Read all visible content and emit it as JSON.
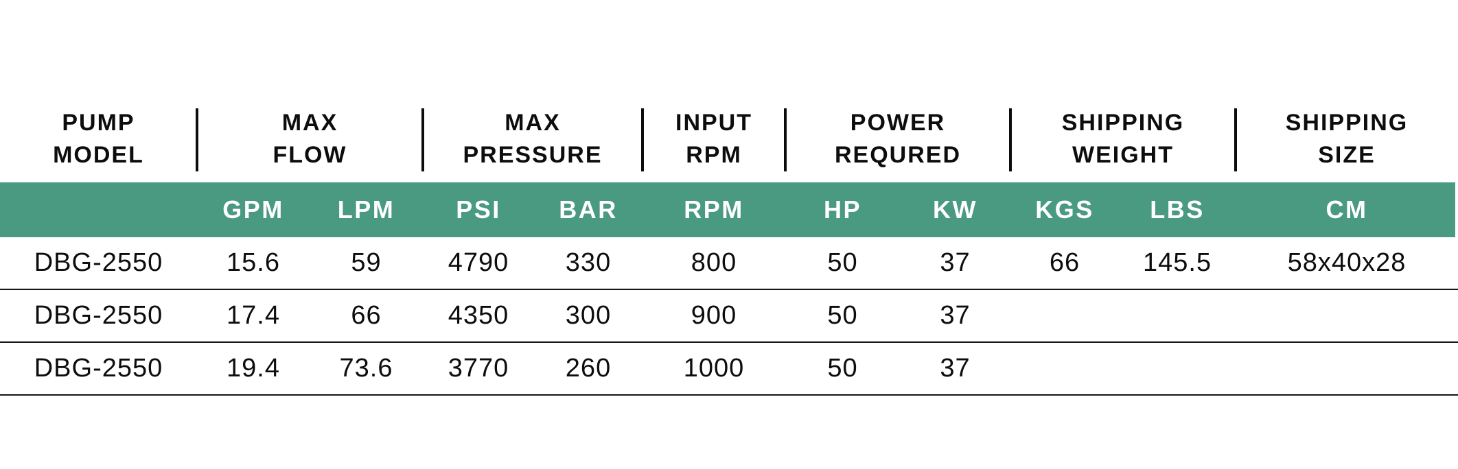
{
  "table": {
    "accent_color": "#4A9A82",
    "groups": [
      {
        "line1": "PUMP",
        "line2": "MODEL"
      },
      {
        "line1": "MAX",
        "line2": "FLOW"
      },
      {
        "line1": "MAX",
        "line2": "PRESSURE"
      },
      {
        "line1": "INPUT",
        "line2": "RPM"
      },
      {
        "line1": "POWER",
        "line2": "REQURED"
      },
      {
        "line1": "SHIPPING",
        "line2": "WEIGHT"
      },
      {
        "line1": "SHIPPING",
        "line2": "SIZE"
      }
    ],
    "units": [
      "",
      "GPM",
      "LPM",
      "PSI",
      "BAR",
      "RPM",
      "HP",
      "KW",
      "KGS",
      "LBS",
      "CM"
    ],
    "rows": [
      [
        "DBG-2550",
        "15.6",
        "59",
        "4790",
        "330",
        "800",
        "50",
        "37",
        "66",
        "145.5",
        "58x40x28"
      ],
      [
        "DBG-2550",
        "17.4",
        "66",
        "4350",
        "300",
        "900",
        "50",
        "37",
        "",
        "",
        ""
      ],
      [
        "DBG-2550",
        "19.4",
        "73.6",
        "3770",
        "260",
        "1000",
        "50",
        "37",
        "",
        "",
        ""
      ]
    ]
  }
}
